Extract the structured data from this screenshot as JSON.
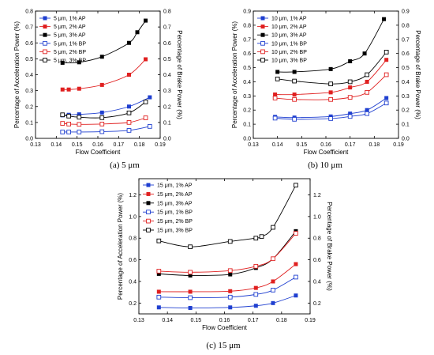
{
  "chart_data": [
    {
      "type": "scatter",
      "caption": "(a) 5 μm",
      "xlabel": "Flow Coefficient",
      "ylabel": "Percentage of Acceleration Power (%)",
      "y2label": "Percentage of Brake Power (%)",
      "xlim": [
        0.13,
        0.19
      ],
      "ylim": [
        0.0,
        0.8
      ],
      "y2lim": [
        0.0,
        0.8
      ],
      "xticks": [
        "0.13",
        "0.14",
        "0.15",
        "0.16",
        "0.17",
        "0.18",
        "0.19"
      ],
      "yticks": [
        "0.0",
        "0.1",
        "0.2",
        "0.3",
        "0.4",
        "0.5",
        "0.6",
        "0.7",
        "0.8"
      ],
      "y2ticks": [
        "0.0",
        "0.1",
        "0.2",
        "0.3",
        "0.4",
        "0.5",
        "0.6",
        "0.7",
        "0.8"
      ],
      "legend_position": "top-left",
      "grid": false,
      "series": [
        {
          "name": "5 μm, 1% AP",
          "color": "#1f3fd0",
          "marker": "filled-square",
          "axis": "left",
          "x": [
            0.143,
            0.146,
            0.151,
            0.162,
            0.175,
            0.185
          ],
          "y": [
            0.145,
            0.148,
            0.151,
            0.162,
            0.2,
            0.258
          ]
        },
        {
          "name": "5 μm, 2% AP",
          "color": "#e02020",
          "marker": "filled-square",
          "axis": "left",
          "x": [
            0.143,
            0.146,
            0.151,
            0.162,
            0.175,
            0.183
          ],
          "y": [
            0.307,
            0.307,
            0.312,
            0.336,
            0.4,
            0.497
          ]
        },
        {
          "name": "5 μm, 3% AP",
          "color": "#000000",
          "marker": "filled-square",
          "axis": "left",
          "x": [
            0.143,
            0.151,
            0.162,
            0.175,
            0.179,
            0.183
          ],
          "y": [
            0.475,
            0.478,
            0.513,
            0.6,
            0.667,
            0.74
          ]
        },
        {
          "name": "5 μm, 1% BP",
          "color": "#1f3fd0",
          "marker": "open-square",
          "axis": "right",
          "x": [
            0.143,
            0.146,
            0.151,
            0.162,
            0.175,
            0.185
          ],
          "y": [
            0.04,
            0.04,
            0.04,
            0.042,
            0.05,
            0.075
          ]
        },
        {
          "name": "5 μm, 2% BP",
          "color": "#e02020",
          "marker": "open-square",
          "axis": "right",
          "x": [
            0.143,
            0.146,
            0.151,
            0.162,
            0.175,
            0.183
          ],
          "y": [
            0.094,
            0.09,
            0.088,
            0.09,
            0.1,
            0.129
          ]
        },
        {
          "name": "5 μm, 3% BP",
          "color": "#000000",
          "marker": "open-square",
          "axis": "right",
          "x": [
            0.143,
            0.146,
            0.151,
            0.162,
            0.175,
            0.183
          ],
          "y": [
            0.148,
            0.14,
            0.133,
            0.13,
            0.16,
            0.229
          ]
        }
      ]
    },
    {
      "type": "scatter",
      "caption": "(b) 10 μm",
      "xlabel": "Flow Coefficient",
      "ylabel": "Percentage of Acceleration Power (%)",
      "y2label": "Percentage of Brake Power (%)",
      "xlim": [
        0.13,
        0.19
      ],
      "ylim": [
        0.0,
        0.9
      ],
      "y2lim": [
        0.0,
        0.9
      ],
      "xticks": [
        "0.13",
        "0.14",
        "0.15",
        "0.16",
        "0.17",
        "0.18",
        "0.19"
      ],
      "yticks": [
        "0.0",
        "0.1",
        "0.2",
        "0.3",
        "0.4",
        "0.5",
        "0.6",
        "0.7",
        "0.8",
        "0.9"
      ],
      "y2ticks": [
        "0.0",
        "0.1",
        "0.2",
        "0.3",
        "0.4",
        "0.5",
        "0.6",
        "0.7",
        "0.8",
        "0.9"
      ],
      "legend_position": "top-left",
      "grid": false,
      "series": [
        {
          "name": "10 μm, 1% AP",
          "color": "#1f3fd0",
          "marker": "filled-square",
          "axis": "left",
          "x": [
            0.139,
            0.147,
            0.162,
            0.17,
            0.177,
            0.185
          ],
          "y": [
            0.152,
            0.147,
            0.155,
            0.175,
            0.2,
            0.285
          ]
        },
        {
          "name": "10 μm, 2% AP",
          "color": "#e02020",
          "marker": "filled-square",
          "axis": "left",
          "x": [
            0.139,
            0.147,
            0.162,
            0.17,
            0.177,
            0.185
          ],
          "y": [
            0.31,
            0.31,
            0.325,
            0.36,
            0.4,
            0.555
          ]
        },
        {
          "name": "10 μm, 3% AP",
          "color": "#000000",
          "marker": "filled-square",
          "axis": "left",
          "x": [
            0.14,
            0.147,
            0.162,
            0.17,
            0.176,
            0.184
          ],
          "y": [
            0.47,
            0.47,
            0.49,
            0.545,
            0.6,
            0.843
          ]
        },
        {
          "name": "10 μm, 1% BP",
          "color": "#1f3fd0",
          "marker": "open-square",
          "axis": "right",
          "x": [
            0.139,
            0.147,
            0.162,
            0.17,
            0.177,
            0.185
          ],
          "y": [
            0.143,
            0.135,
            0.14,
            0.155,
            0.175,
            0.25
          ]
        },
        {
          "name": "10 μm, 2% BP",
          "color": "#e02020",
          "marker": "open-square",
          "axis": "right",
          "x": [
            0.139,
            0.147,
            0.162,
            0.17,
            0.177,
            0.185
          ],
          "y": [
            0.285,
            0.275,
            0.275,
            0.29,
            0.325,
            0.45
          ]
        },
        {
          "name": "10 μm, 3% BP",
          "color": "#000000",
          "marker": "open-square",
          "axis": "right",
          "x": [
            0.14,
            0.147,
            0.162,
            0.17,
            0.177,
            0.185
          ],
          "y": [
            0.42,
            0.405,
            0.385,
            0.4,
            0.45,
            0.61
          ]
        }
      ]
    },
    {
      "type": "scatter",
      "caption": "(c) 15 μm",
      "xlabel": "Flow Coefficient",
      "ylabel": "Percentage of Acceleration Power (%)",
      "y2label": "Percentage of Brake Power (%)",
      "xlim": [
        0.13,
        0.19
      ],
      "ylim": [
        0.1,
        1.35
      ],
      "y2lim": [
        0.1,
        1.35
      ],
      "xticks": [
        "0.13",
        "0.14",
        "0.15",
        "0.16",
        "0.17",
        "0.18",
        "0.19"
      ],
      "yticks": [
        "0.2",
        "0.4",
        "0.6",
        "0.8",
        "1.0",
        "1.2"
      ],
      "y2ticks": [
        "0.2",
        "0.4",
        "0.6",
        "0.8",
        "1.0",
        "1.2"
      ],
      "legend_position": "top-left",
      "grid": false,
      "series": [
        {
          "name": "15 μm, 1% AP",
          "color": "#1f3fd0",
          "marker": "filled-square",
          "axis": "left",
          "x": [
            0.137,
            0.148,
            0.162,
            0.171,
            0.177,
            0.185
          ],
          "y": [
            0.16,
            0.155,
            0.16,
            0.175,
            0.2,
            0.27
          ]
        },
        {
          "name": "15 μm, 2% AP",
          "color": "#e02020",
          "marker": "filled-square",
          "axis": "left",
          "x": [
            0.137,
            0.148,
            0.162,
            0.171,
            0.177,
            0.185
          ],
          "y": [
            0.305,
            0.305,
            0.31,
            0.34,
            0.4,
            0.56
          ]
        },
        {
          "name": "15 μm, 3% AP",
          "color": "#000000",
          "marker": "filled-square",
          "axis": "left",
          "x": [
            0.137,
            0.148,
            0.162,
            0.171,
            0.177,
            0.185
          ],
          "y": [
            0.47,
            0.455,
            0.465,
            0.525,
            0.61,
            0.865
          ]
        },
        {
          "name": "15 μm, 1% BP",
          "color": "#1f3fd0",
          "marker": "open-square",
          "axis": "right",
          "x": [
            0.137,
            0.148,
            0.162,
            0.171,
            0.177,
            0.185
          ],
          "y": [
            0.255,
            0.25,
            0.255,
            0.28,
            0.32,
            0.44
          ]
        },
        {
          "name": "15 μm, 2% BP",
          "color": "#e02020",
          "marker": "open-square",
          "axis": "right",
          "x": [
            0.137,
            0.148,
            0.162,
            0.171,
            0.177,
            0.185
          ],
          "y": [
            0.495,
            0.485,
            0.5,
            0.54,
            0.61,
            0.845
          ]
        },
        {
          "name": "15 μm, 3% BP",
          "color": "#000000",
          "marker": "open-square",
          "axis": "right",
          "x": [
            0.137,
            0.148,
            0.162,
            0.171,
            0.173,
            0.177,
            0.185
          ],
          "y": [
            0.775,
            0.72,
            0.77,
            0.8,
            0.815,
            0.9,
            1.29
          ]
        }
      ]
    }
  ]
}
